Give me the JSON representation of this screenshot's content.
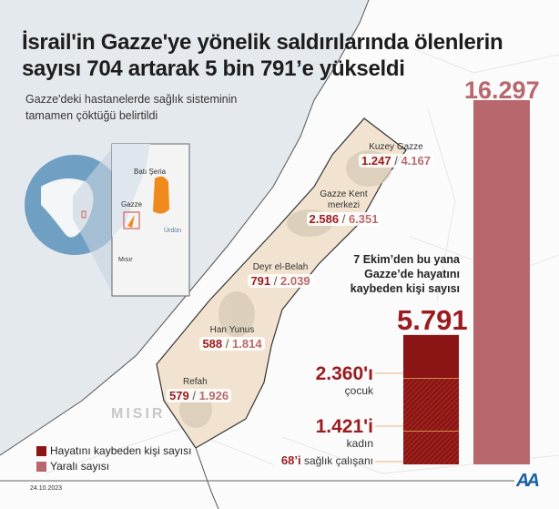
{
  "header": {
    "title": "İsrail'in Gazze'ye yönelik saldırılarında ölenlerin sayısı 704 artarak 5 bin 791’e yükseldi",
    "subtitle": "Gazze'deki hastanelerde sağlık sisteminin tamamen çöktüğü belirtildi"
  },
  "inset": {
    "west_bank": "Batı Şeria",
    "gaza": "Gazze",
    "jordan": "Ürdün",
    "egypt": "Mısır"
  },
  "map": {
    "egypt_label": "MISIR",
    "regions": [
      {
        "name": "Kuzey Gazze",
        "killed": "1.247",
        "wounded": "4.167"
      },
      {
        "name": "Gazze Kent merkezi",
        "killed": "2.586",
        "wounded": "6.351"
      },
      {
        "name": "Deyr el-Belah",
        "killed": "791",
        "wounded": "2.039"
      },
      {
        "name": "Han Yunus",
        "killed": "588",
        "wounded": "1.814"
      },
      {
        "name": "Refah",
        "killed": "579",
        "wounded": "1.926"
      }
    ],
    "separator": "/"
  },
  "chart_data": {
    "type": "bar",
    "categories": [
      "Hayatını kaybeden kişi sayısı",
      "Yaralı sayısı"
    ],
    "values": [
      5791,
      16297
    ],
    "value_labels": [
      "5.791",
      "16.297"
    ],
    "caption": "7 Ekim’den bu yana Gazze’de hayatını kaybeden kişi sayısı",
    "breakdown": [
      {
        "value": 2360,
        "label": "2.360'ı",
        "desc": "çocuk"
      },
      {
        "value": 1421,
        "label": "1.421'i",
        "desc": "kadın"
      },
      {
        "value": 68,
        "label": "68’i",
        "desc": "sağlık çalışanı"
      }
    ],
    "legend": [
      {
        "label": "Hayatını kaybeden kişi sayısı",
        "color": "#8b1414"
      },
      {
        "label": "Yaralı sayısı",
        "color": "#b8686c"
      }
    ],
    "legend_position": "bottom-left"
  },
  "footer": {
    "date": "24.10.2023",
    "logo": "AA"
  },
  "colors": {
    "sea": "#e3e8ee",
    "strip": "#f1e3cf",
    "killed": "#8b1414",
    "wounded": "#b8686c",
    "accent_text": "#9b1b1f",
    "orange": "#f08a1c"
  }
}
